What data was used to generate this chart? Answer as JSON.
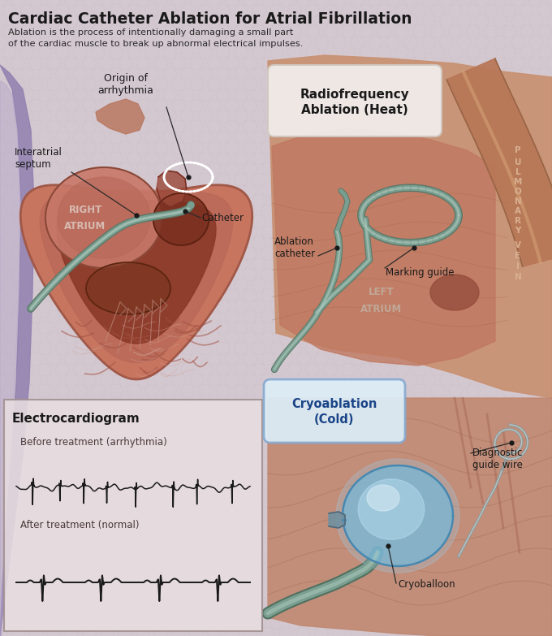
{
  "title": "Cardiac Catheter Ablation for Atrial Fibrillation",
  "subtitle": "Ablation is the process of intentionally damaging a small part\nof the cardiac muscle to break up abnormal electrical impulses.",
  "bg_color": "#d4c8d0",
  "title_color": "#1a1a1a",
  "subtitle_color": "#2a2a2a",
  "labels": {
    "origin_arrhythmia": "Origin of\narrhythmia",
    "interatrial_septum": "Interatrial\nseptum",
    "right_atrium": "RIGHT\nATRIUM",
    "catheter": "Catheter",
    "rf_ablation": "Radiofrequency\nAblation (Heat)",
    "pulmonary_vein": "PULMONARY\nVEIN",
    "ablation_catheter": "Ablation\ncatheter",
    "marking_guide": "Marking guide",
    "left_atrium": "LEFT\nATRIUM",
    "cryoablation": "Cryoablation\n(Cold)",
    "diagnostic_guide": "Diagnostic\nguide wire",
    "cryoballoon": "Cryoballoon",
    "ecg_title": "Electrocardiogram",
    "before_treatment": "Before treatment (arrhythmia)",
    "after_treatment": "After treatment (normal)"
  },
  "heart_outer": "#c87060",
  "heart_wall": "#b85848",
  "heart_inner": "#9a4035",
  "heart_dark": "#7a3025",
  "ra_color": "#c8786a",
  "ra_inner": "#b06055",
  "catheter_body": "#7a9e90",
  "catheter_light": "#b0ccc0",
  "catheter_dark": "#5a7868",
  "balloon_blue": "#78b8d8",
  "balloon_light": "#b8ddf0",
  "balloon_white": "#e0f0f8",
  "wire_gray": "#909898",
  "wire_light": "#c8d8d8",
  "vessel_flesh": "#c89070",
  "vessel_dark": "#a07050",
  "tissue_pink": "#d0a080",
  "tissue_shadow": "#b08060",
  "purple_vessel": "#9080b0",
  "purple_light": "#b0a0c8",
  "ecg_bg": "#e8dde0",
  "ecg_line": "#1a1a1a",
  "rf_box_bg": "#f2efee",
  "rf_text": "#1a1a1a",
  "cryo_box_bg": "#ddeef8",
  "cryo_text": "#1a4488",
  "annotation_line": "#2a2a2a",
  "annotation_dot": "#1a1a1a",
  "ra_label_color": "#d8c0b8",
  "la_label_color": "#c0a898"
}
